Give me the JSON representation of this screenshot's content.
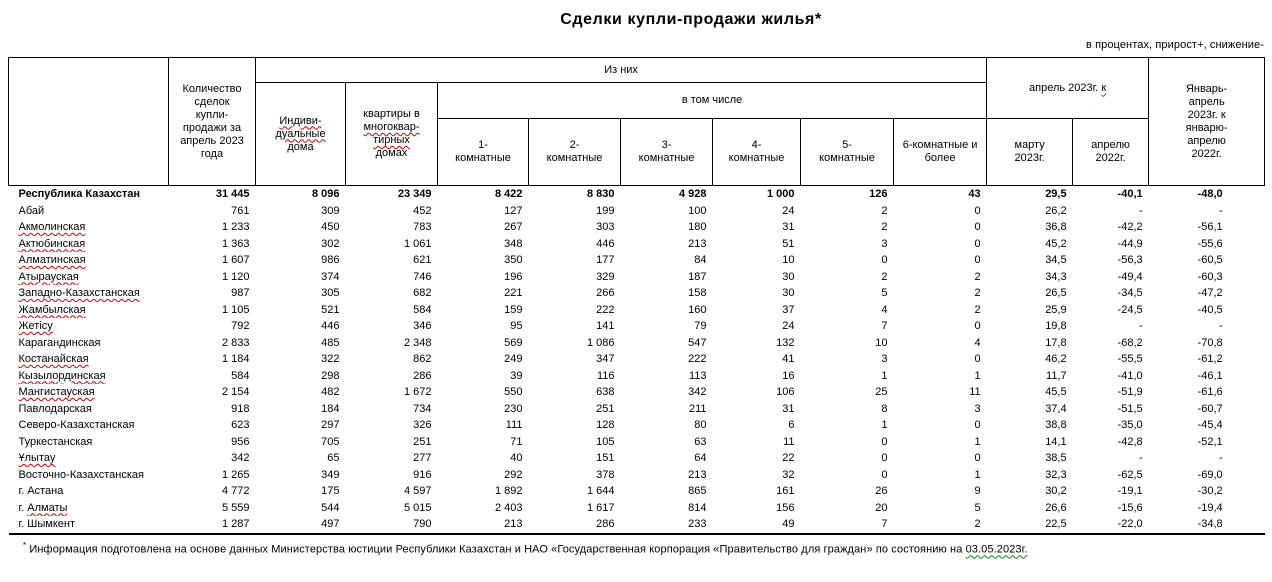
{
  "title": "Сделки купли-продажи жилья*",
  "units_note": "в процентах, прирост+, снижение-",
  "header": {
    "col_qty": "Количество сделок купли-продажи за апрель 2023 года",
    "group_of_them": "Из них",
    "col_individual": {
      "word": "Индиви-дуальные",
      "rest": "дома"
    },
    "col_apartments": {
      "pre": "квартиры в",
      "word": "многоквар-тирных",
      "rest": "домах"
    },
    "group_including": "в том числе",
    "rooms": [
      "1-комнатные",
      "2-комнатные",
      "3-комнатные",
      "4-комнатные",
      "5-комнатные",
      "6-комнатные и более"
    ],
    "group_april": {
      "text": "апрель 2023г.",
      "sp_green": "к"
    },
    "col_march": "марту 2023г.",
    "col_april22": "апрелю 2022г.",
    "col_jan_apr": "Январь-апрель 2023г. к январю-апрелю 2022г."
  },
  "rows": [
    {
      "pre": "",
      "name": "Республика Казахстан",
      "sp": false,
      "bold": true,
      "values": [
        "31 445",
        "8 096",
        "23 349",
        "8 422",
        "8 830",
        "4 928",
        "1 000",
        "126",
        "43",
        "29,5",
        "-40,1",
        "-48,0"
      ]
    },
    {
      "pre": "",
      "name": "Абай",
      "sp": false,
      "bold": false,
      "values": [
        "761",
        "309",
        "452",
        "127",
        "199",
        "100",
        "24",
        "2",
        "0",
        "26,2",
        "-",
        "-"
      ]
    },
    {
      "pre": "",
      "name": "Акмолинская",
      "sp": true,
      "bold": false,
      "values": [
        "1 233",
        "450",
        "783",
        "267",
        "303",
        "180",
        "31",
        "2",
        "0",
        "36,8",
        "-42,2",
        "-56,1"
      ]
    },
    {
      "pre": "",
      "name": "Актюбинская",
      "sp": true,
      "bold": false,
      "values": [
        "1 363",
        "302",
        "1 061",
        "348",
        "446",
        "213",
        "51",
        "3",
        "0",
        "45,2",
        "-44,9",
        "-55,6"
      ]
    },
    {
      "pre": "",
      "name": "Алматинская",
      "sp": true,
      "bold": false,
      "values": [
        "1 607",
        "986",
        "621",
        "350",
        "177",
        "84",
        "10",
        "0",
        "0",
        "34,5",
        "-56,3",
        "-60,5"
      ]
    },
    {
      "pre": "",
      "name": "Атырауская",
      "sp": true,
      "bold": false,
      "values": [
        "1 120",
        "374",
        "746",
        "196",
        "329",
        "187",
        "30",
        "2",
        "2",
        "34,3",
        "-49,4",
        "-60,3"
      ]
    },
    {
      "pre": "",
      "name": "Западно-Казахстанская",
      "sp": true,
      "bold": false,
      "values": [
        "987",
        "305",
        "682",
        "221",
        "266",
        "158",
        "30",
        "5",
        "2",
        "26,5",
        "-34,5",
        "-47,2"
      ]
    },
    {
      "pre": "",
      "name": "Жамбылская",
      "sp": true,
      "bold": false,
      "values": [
        "1 105",
        "521",
        "584",
        "159",
        "222",
        "160",
        "37",
        "4",
        "2",
        "25,9",
        "-24,5",
        "-40,5"
      ]
    },
    {
      "pre": "",
      "name": "Жетісу",
      "sp": true,
      "bold": false,
      "values": [
        "792",
        "446",
        "346",
        "95",
        "141",
        "79",
        "24",
        "7",
        "0",
        "19,8",
        "-",
        "-"
      ]
    },
    {
      "pre": "",
      "name": "Карагандинская",
      "sp": false,
      "bold": false,
      "values": [
        "2 833",
        "485",
        "2 348",
        "569",
        "1 086",
        "547",
        "132",
        "10",
        "4",
        "17,8",
        "-68,2",
        "-70,8"
      ]
    },
    {
      "pre": "",
      "name": "Костанайская",
      "sp": true,
      "bold": false,
      "values": [
        "1 184",
        "322",
        "862",
        "249",
        "347",
        "222",
        "41",
        "3",
        "0",
        "46,2",
        "-55,5",
        "-61,2"
      ]
    },
    {
      "pre": "",
      "name": "Кызылординская",
      "sp": true,
      "bold": false,
      "values": [
        "584",
        "298",
        "286",
        "39",
        "116",
        "113",
        "16",
        "1",
        "1",
        "11,7",
        "-41,0",
        "-46,1"
      ]
    },
    {
      "pre": "",
      "name": "Мангистауская",
      "sp": true,
      "bold": false,
      "values": [
        "2 154",
        "482",
        "1 672",
        "550",
        "638",
        "342",
        "106",
        "25",
        "11",
        "45,5",
        "-51,9",
        "-61,6"
      ]
    },
    {
      "pre": "",
      "name": "Павлодарская",
      "sp": false,
      "bold": false,
      "values": [
        "918",
        "184",
        "734",
        "230",
        "251",
        "211",
        "31",
        "8",
        "3",
        "37,4",
        "-51,5",
        "-60,7"
      ]
    },
    {
      "pre": "",
      "name": "Северо-Казахстанская",
      "sp": false,
      "bold": false,
      "values": [
        "623",
        "297",
        "326",
        "111",
        "128",
        "80",
        "6",
        "1",
        "0",
        "38,8",
        "-35,0",
        "-45,4"
      ]
    },
    {
      "pre": "",
      "name": "Туркестанская",
      "sp": false,
      "bold": false,
      "values": [
        "956",
        "705",
        "251",
        "71",
        "105",
        "63",
        "11",
        "0",
        "1",
        "14,1",
        "-42,8",
        "-52,1"
      ]
    },
    {
      "pre": "",
      "name": "Ұлытау",
      "sp": true,
      "bold": false,
      "values": [
        "342",
        "65",
        "277",
        "40",
        "151",
        "64",
        "22",
        "0",
        "0",
        "38,5",
        "-",
        "-"
      ]
    },
    {
      "pre": "",
      "name": "Восточно-Казахстанская",
      "sp": false,
      "bold": false,
      "values": [
        "1 265",
        "349",
        "916",
        "292",
        "378",
        "213",
        "32",
        "0",
        "1",
        "32,3",
        "-62,5",
        "-69,0"
      ]
    },
    {
      "pre": "г. ",
      "name": "Астана",
      "sp": false,
      "bold": false,
      "values": [
        "4 772",
        "175",
        "4 597",
        "1 892",
        "1 644",
        "865",
        "161",
        "26",
        "9",
        "30,2",
        "-19,1",
        "-30,2"
      ]
    },
    {
      "pre": "г. ",
      "name": "Алматы",
      "sp": true,
      "bold": false,
      "values": [
        "5 559",
        "544",
        "5 015",
        "2 403",
        "1 617",
        "814",
        "156",
        "20",
        "5",
        "26,6",
        "-15,6",
        "-19,4"
      ]
    },
    {
      "pre": "г. ",
      "name": "Шымкент",
      "sp": false,
      "bold": false,
      "values": [
        "1 287",
        "497",
        "790",
        "213",
        "286",
        "233",
        "49",
        "7",
        "2",
        "22,5",
        "-22,0",
        "-34,8"
      ]
    }
  ],
  "footnote": {
    "star": "*",
    "pre": " Информация подготовлена на основе данных Министерства юстиции Республики Казахстан и НАО «Государственная корпорация «Правительство для граждан» по состоянию на ",
    "date": "03.05.2023г."
  }
}
